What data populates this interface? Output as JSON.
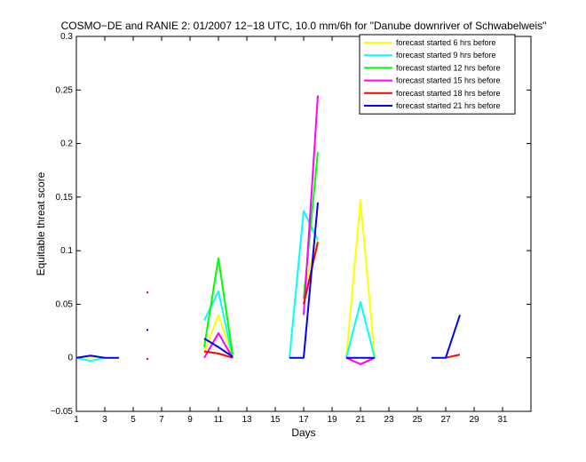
{
  "chart_data": {
    "type": "line",
    "title": "COSMO−DE and RANIE 2: 01/2007 12−18 UTC, 10.0 mm/6h for \"Danube downriver of Schwabelweis\"",
    "xlabel": "Days",
    "ylabel": "Equitable threat score",
    "xlim": [
      1,
      33
    ],
    "ylim": [
      -0.05,
      0.3
    ],
    "xticks": [
      1,
      3,
      5,
      7,
      9,
      11,
      13,
      15,
      17,
      19,
      21,
      23,
      25,
      27,
      29,
      31
    ],
    "yticks": [
      -0.05,
      0,
      0.05,
      0.1,
      0.15,
      0.2,
      0.25,
      0.3
    ],
    "ytick_labels": [
      "−0.05",
      "0",
      "0.05",
      "0.1",
      "0.15",
      "0.2",
      "0.25",
      "0.3"
    ],
    "legend_position": "top-right",
    "grid": false,
    "series": [
      {
        "name": "forecast started 6 hrs before",
        "color": "#ffff00",
        "segments": [
          [
            [
              1,
              0
            ],
            [
              2,
              0.001
            ],
            [
              3,
              0
            ]
          ],
          [
            [
              10,
              0.005
            ],
            [
              11,
              0.04
            ],
            [
              12,
              0
            ]
          ],
          [
            [
              17,
              0.065
            ],
            [
              18,
              0.11
            ]
          ],
          [
            [
              20,
              0
            ],
            [
              21,
              0.147
            ],
            [
              22,
              0
            ]
          ]
        ],
        "points": []
      },
      {
        "name": "forecast started 9 hrs before",
        "color": "#00ffff",
        "segments": [
          [
            [
              1,
              0
            ],
            [
              2,
              -0.003
            ],
            [
              3,
              0
            ]
          ],
          [
            [
              10,
              0.035
            ],
            [
              11,
              0.062
            ],
            [
              12,
              0
            ]
          ],
          [
            [
              16,
              0
            ],
            [
              17,
              0.137
            ],
            [
              18,
              0.11
            ]
          ],
          [
            [
              20,
              0
            ],
            [
              21,
              0.052
            ],
            [
              22,
              0
            ]
          ]
        ],
        "points": []
      },
      {
        "name": "forecast started 12 hrs before",
        "color": "#00ff00",
        "segments": [
          [
            [
              10,
              0.01
            ],
            [
              11,
              0.093
            ],
            [
              12,
              0.003
            ]
          ],
          [
            [
              17,
              0.055
            ],
            [
              18,
              0.192
            ]
          ]
        ],
        "points": []
      },
      {
        "name": "forecast started 15 hrs before",
        "color": "#ff00ff",
        "segments": [
          [
            [
              10,
              0
            ],
            [
              11,
              0.023
            ],
            [
              12,
              0
            ]
          ],
          [
            [
              17,
              0.04
            ],
            [
              18,
              0.245
            ]
          ],
          [
            [
              20,
              0
            ],
            [
              21,
              -0.006
            ],
            [
              22,
              0
            ]
          ]
        ],
        "points": []
      },
      {
        "name": "forecast started 18 hrs before",
        "color": "#ff0000",
        "segments": [
          [
            [
              10,
              0.006
            ],
            [
              11,
              0.004
            ],
            [
              12,
              0
            ]
          ],
          [
            [
              17,
              0.05
            ],
            [
              18,
              0.108
            ]
          ],
          [
            [
              27,
              0
            ],
            [
              28,
              0.003
            ]
          ]
        ],
        "points": [
          [
            6,
            0.061
          ],
          [
            6,
            -0.001
          ]
        ]
      },
      {
        "name": "forecast started 21 hrs before",
        "color": "#0000ff",
        "segments": [
          [
            [
              1,
              0
            ],
            [
              2,
              0.002
            ],
            [
              3,
              0
            ],
            [
              4,
              0
            ]
          ],
          [
            [
              10,
              0.018
            ],
            [
              11,
              0.01
            ],
            [
              12,
              0.001
            ]
          ],
          [
            [
              16,
              0
            ],
            [
              17,
              0
            ],
            [
              18,
              0.145
            ]
          ],
          [
            [
              20,
              0
            ],
            [
              21,
              0
            ],
            [
              22,
              0
            ]
          ],
          [
            [
              26,
              0
            ],
            [
              27,
              0
            ],
            [
              28,
              0.04
            ]
          ]
        ],
        "points": [
          [
            6,
            0.026
          ]
        ]
      }
    ]
  }
}
